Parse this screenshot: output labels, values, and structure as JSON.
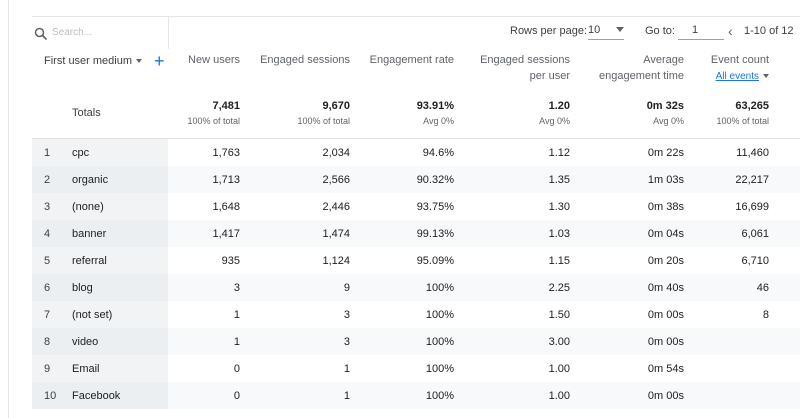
{
  "toolbar": {
    "search_placeholder": "Search...",
    "rows_per_page_label": "Rows per page:",
    "rows_per_page_value": "10",
    "go_to_label": "Go to:",
    "go_to_value": "1",
    "range_text": "1-10 of 12"
  },
  "headers": {
    "dimension": "First user medium",
    "new_users": "New users",
    "engaged_sessions": "Engaged sessions",
    "engagement_rate": "Engagement rate",
    "engaged_per_user_line1": "Engaged sessions",
    "engaged_per_user_line2": "per user",
    "avg_eng_line1": "Average",
    "avg_eng_line2": "engagement time",
    "event_count": "Event count",
    "event_filter": "All events"
  },
  "totals": {
    "label": "Totals",
    "new_users": "7,481",
    "new_users_sub": "100% of total",
    "engaged_sessions": "9,670",
    "engaged_sessions_sub": "100% of total",
    "engagement_rate": "93.91%",
    "engagement_rate_sub": "Avg 0%",
    "per_user": "1.20",
    "per_user_sub": "Avg 0%",
    "avg_time": "0m 32s",
    "avg_time_sub": "Avg 0%",
    "event_count": "63,265",
    "event_count_sub": "100% of total"
  },
  "rows": [
    {
      "idx": "1",
      "name": "cpc",
      "new_users": "1,763",
      "engaged": "2,034",
      "rate": "94.6%",
      "per_user": "1.12",
      "time": "0m 22s",
      "events": "11,460"
    },
    {
      "idx": "2",
      "name": "organic",
      "new_users": "1,713",
      "engaged": "2,566",
      "rate": "90.32%",
      "per_user": "1.35",
      "time": "1m 03s",
      "events": "22,217"
    },
    {
      "idx": "3",
      "name": "(none)",
      "new_users": "1,648",
      "engaged": "2,446",
      "rate": "93.75%",
      "per_user": "1.30",
      "time": "0m 38s",
      "events": "16,699"
    },
    {
      "idx": "4",
      "name": "banner",
      "new_users": "1,417",
      "engaged": "1,474",
      "rate": "99.13%",
      "per_user": "1.03",
      "time": "0m 04s",
      "events": "6,061"
    },
    {
      "idx": "5",
      "name": "referral",
      "new_users": "935",
      "engaged": "1,124",
      "rate": "95.09%",
      "per_user": "1.15",
      "time": "0m 20s",
      "events": "6,710"
    },
    {
      "idx": "6",
      "name": "blog",
      "new_users": "3",
      "engaged": "9",
      "rate": "100%",
      "per_user": "2.25",
      "time": "0m 40s",
      "events": "46"
    },
    {
      "idx": "7",
      "name": "(not set)",
      "new_users": "1",
      "engaged": "3",
      "rate": "100%",
      "per_user": "1.50",
      "time": "0m 00s",
      "events": "8"
    },
    {
      "idx": "8",
      "name": "video",
      "new_users": "1",
      "engaged": "3",
      "rate": "100%",
      "per_user": "3.00",
      "time": "0m 00s",
      "events": ""
    },
    {
      "idx": "9",
      "name": "Email",
      "new_users": "0",
      "engaged": "1",
      "rate": "100%",
      "per_user": "1.00",
      "time": "0m 54s",
      "events": ""
    },
    {
      "idx": "10",
      "name": "Facebook",
      "new_users": "0",
      "engaged": "1",
      "rate": "100%",
      "per_user": "1.00",
      "time": "0m 00s",
      "events": ""
    }
  ]
}
